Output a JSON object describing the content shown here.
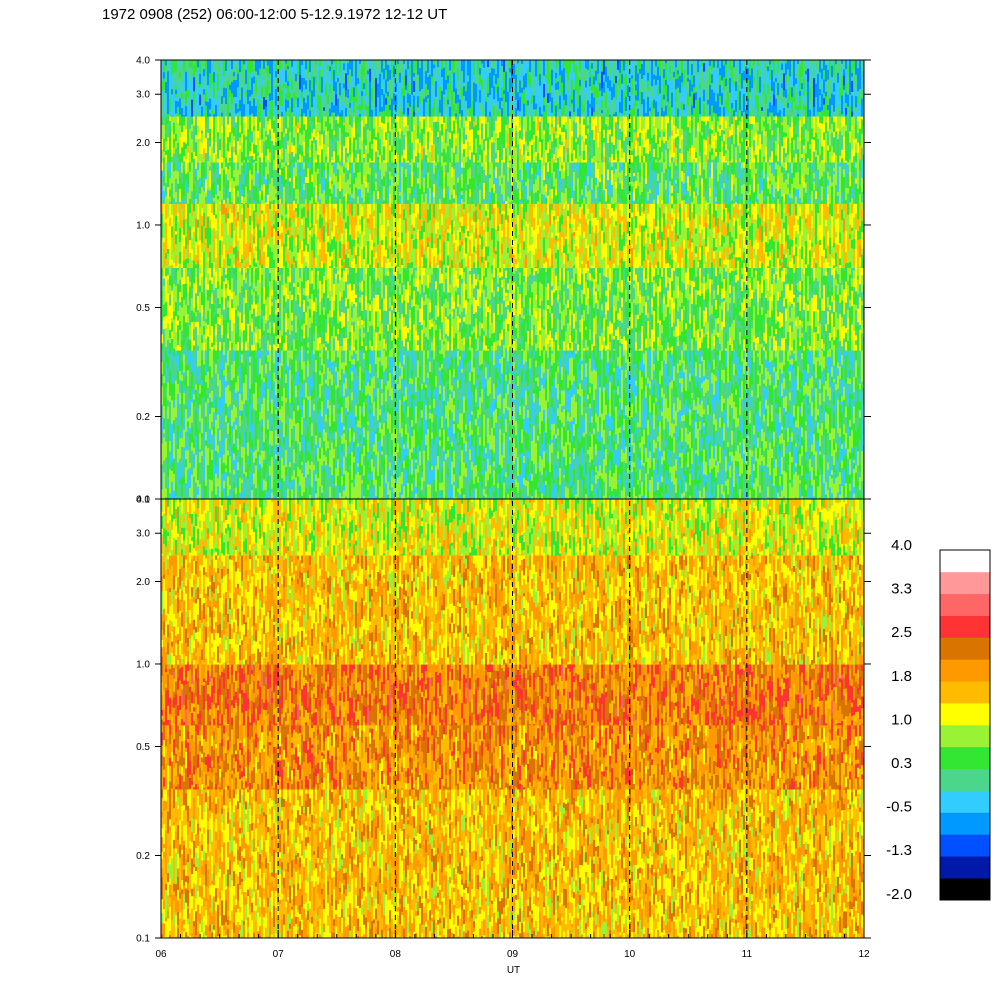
{
  "title": "1972 0908 (252) 06:00-12:00 5-12.9.1972  12-12 UT",
  "chart_data": {
    "type": "heatmap",
    "panels": [
      {
        "name": "",
        "ylabel": "",
        "ylim": [
          0.1,
          4.0
        ],
        "y_scale": "log",
        "yticks": [
          0.1,
          0.2,
          0.5,
          1.0,
          2.0,
          3.0,
          4.0
        ],
        "ytick_labels": [
          "0.1",
          "0.2",
          "0.5",
          "1.0",
          "2.0",
          "3.0",
          "4.0"
        ],
        "dominant_band_values": [
          {
            "y_range": [
              0.1,
              0.35
            ],
            "value": 0.3
          },
          {
            "y_range": [
              0.35,
              0.7
            ],
            "value": 0.6
          },
          {
            "y_range": [
              0.7,
              1.2
            ],
            "value": 1.1
          },
          {
            "y_range": [
              1.2,
              1.7
            ],
            "value": 0.4
          },
          {
            "y_range": [
              1.7,
              2.5
            ],
            "value": 0.7
          },
          {
            "y_range": [
              2.5,
              4.0
            ],
            "value": -0.2
          }
        ]
      },
      {
        "name": "",
        "ylabel": "",
        "ylim": [
          0.1,
          4.0
        ],
        "y_scale": "log",
        "yticks": [
          0.1,
          0.2,
          0.5,
          1.0,
          2.0,
          3.0,
          4.0
        ],
        "ytick_labels": [
          "0.1",
          "0.2",
          "0.5",
          "1.0",
          "2.0",
          "3.0",
          "4.0"
        ],
        "dominant_band_values": [
          {
            "y_range": [
              0.1,
              0.35
            ],
            "value": 1.6
          },
          {
            "y_range": [
              0.35,
              0.6
            ],
            "value": 2.0
          },
          {
            "y_range": [
              0.6,
              1.0
            ],
            "value": 2.2
          },
          {
            "y_range": [
              1.0,
              2.5
            ],
            "value": 1.6
          },
          {
            "y_range": [
              2.5,
              4.0
            ],
            "value": 1.1
          }
        ]
      }
    ],
    "x": {
      "label": "UT",
      "range": [
        6,
        12
      ],
      "ticks": [
        6,
        7,
        8,
        9,
        10,
        11,
        12
      ],
      "tick_labels": [
        "06",
        "07",
        "08",
        "09",
        "10",
        "11",
        "12"
      ],
      "minor_per_major": 6,
      "dashed_gridlines": [
        7,
        8,
        9,
        10,
        11
      ]
    },
    "colorbar": {
      "labels": [
        "4.0",
        "3.3",
        "2.5",
        "1.8",
        "1.0",
        "0.3",
        "-0.5",
        "-1.3",
        "-2.0"
      ],
      "range": [
        -2.0,
        4.0
      ],
      "colors": [
        "#000000",
        "#0019a8",
        "#0050ff",
        "#0099ff",
        "#33ccff",
        "#4cd68a",
        "#33e633",
        "#99f233",
        "#ffff00",
        "#ffbb00",
        "#ff9900",
        "#d97400",
        "#ff3333",
        "#ff6666",
        "#ff9999",
        "#ffffff"
      ]
    },
    "grid": false,
    "legend": "right"
  }
}
